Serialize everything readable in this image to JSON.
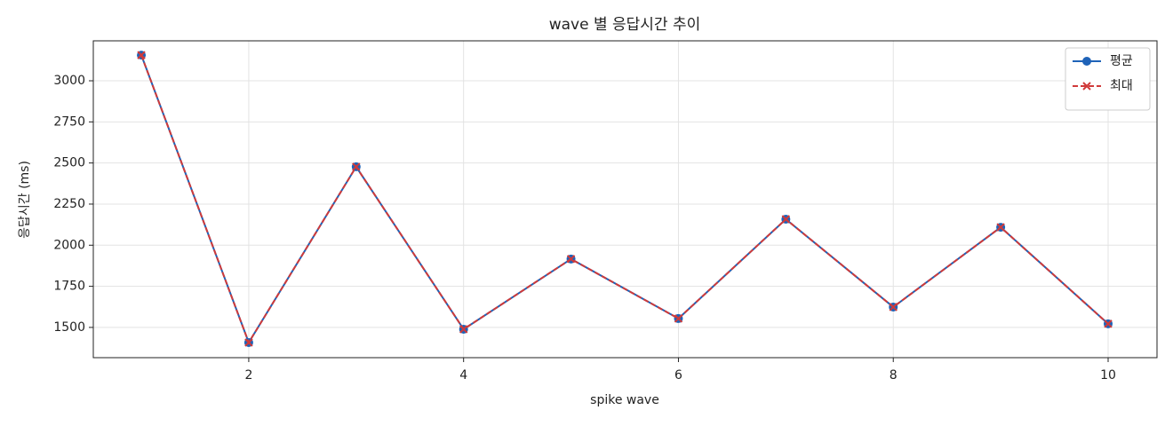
{
  "chart_data": {
    "type": "line",
    "title": "wave 별 응답시간 추이",
    "x_label": "spike wave",
    "y_label": "응답시간 (ms)",
    "x": [
      1,
      2,
      3,
      4,
      5,
      6,
      7,
      8,
      9,
      10
    ],
    "series": [
      {
        "name": "평균",
        "color": "#1f63b8",
        "marker": "circle",
        "dash": "solid",
        "values": [
          3156,
          1408,
          2477,
          1489,
          1916,
          1554,
          2158,
          1624,
          2109,
          1522
        ]
      },
      {
        "name": "최대",
        "color": "#d03a3a",
        "marker": "x",
        "dash": "dashed",
        "values": [
          3156,
          1408,
          2477,
          1489,
          1916,
          1554,
          2158,
          1624,
          2109,
          1522
        ]
      }
    ],
    "xlim": [
      0.553,
      10.455
    ],
    "ylim": [
      1316,
      3243
    ],
    "xticks": [
      2,
      4,
      6,
      8,
      10
    ],
    "yticks": [
      1500,
      1750,
      2000,
      2250,
      2500,
      2750,
      3000
    ],
    "grid": true,
    "legend": "upper right"
  }
}
